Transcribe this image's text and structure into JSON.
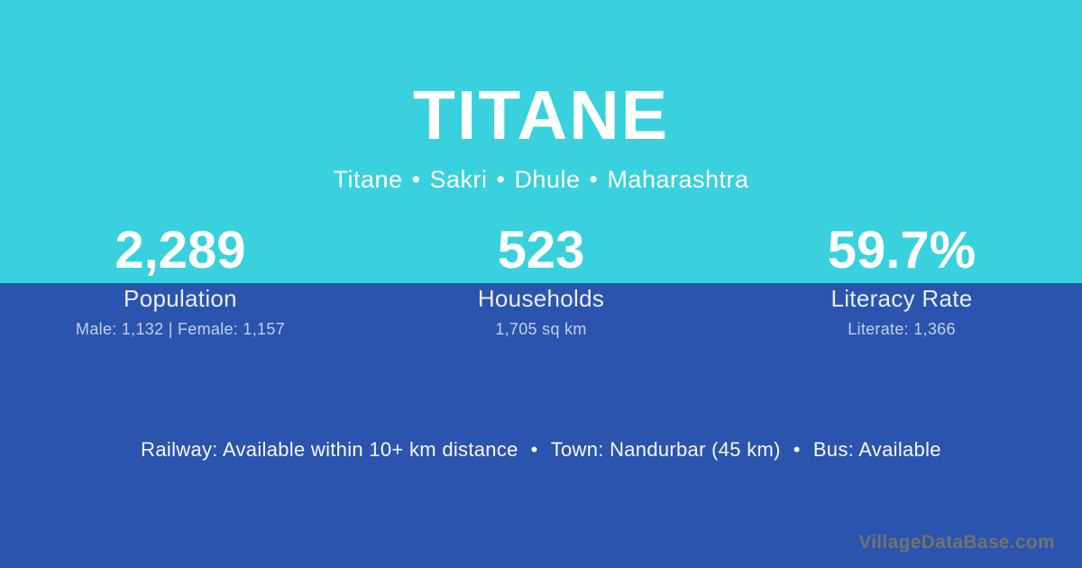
{
  "page": {
    "title": "TITANE"
  },
  "location": {
    "separator": "•",
    "parts": [
      "Titane",
      "Sakri",
      "Dhule",
      "Maharashtra"
    ]
  },
  "stats": [
    {
      "value": "2,289",
      "label": "Population",
      "detail": "Male: 1,132 | Female: 1,157"
    },
    {
      "value": "523",
      "label": "Households",
      "detail": "1,705 sq km"
    },
    {
      "value": "59.7%",
      "label": "Literacy Rate",
      "detail": "Literate: 1,366"
    }
  ],
  "info": {
    "separator": "•",
    "items": [
      "Railway: Available within 10+ km distance",
      "Town: Nandurbar (45 km)",
      "Bus: Available"
    ]
  },
  "watermark": "VillageDataBase.com",
  "colors": {
    "top_bg": "#38d1dd",
    "bottom_bg": "#2a54ae",
    "text": "#ffffff",
    "watermark_color": "#70746f"
  }
}
